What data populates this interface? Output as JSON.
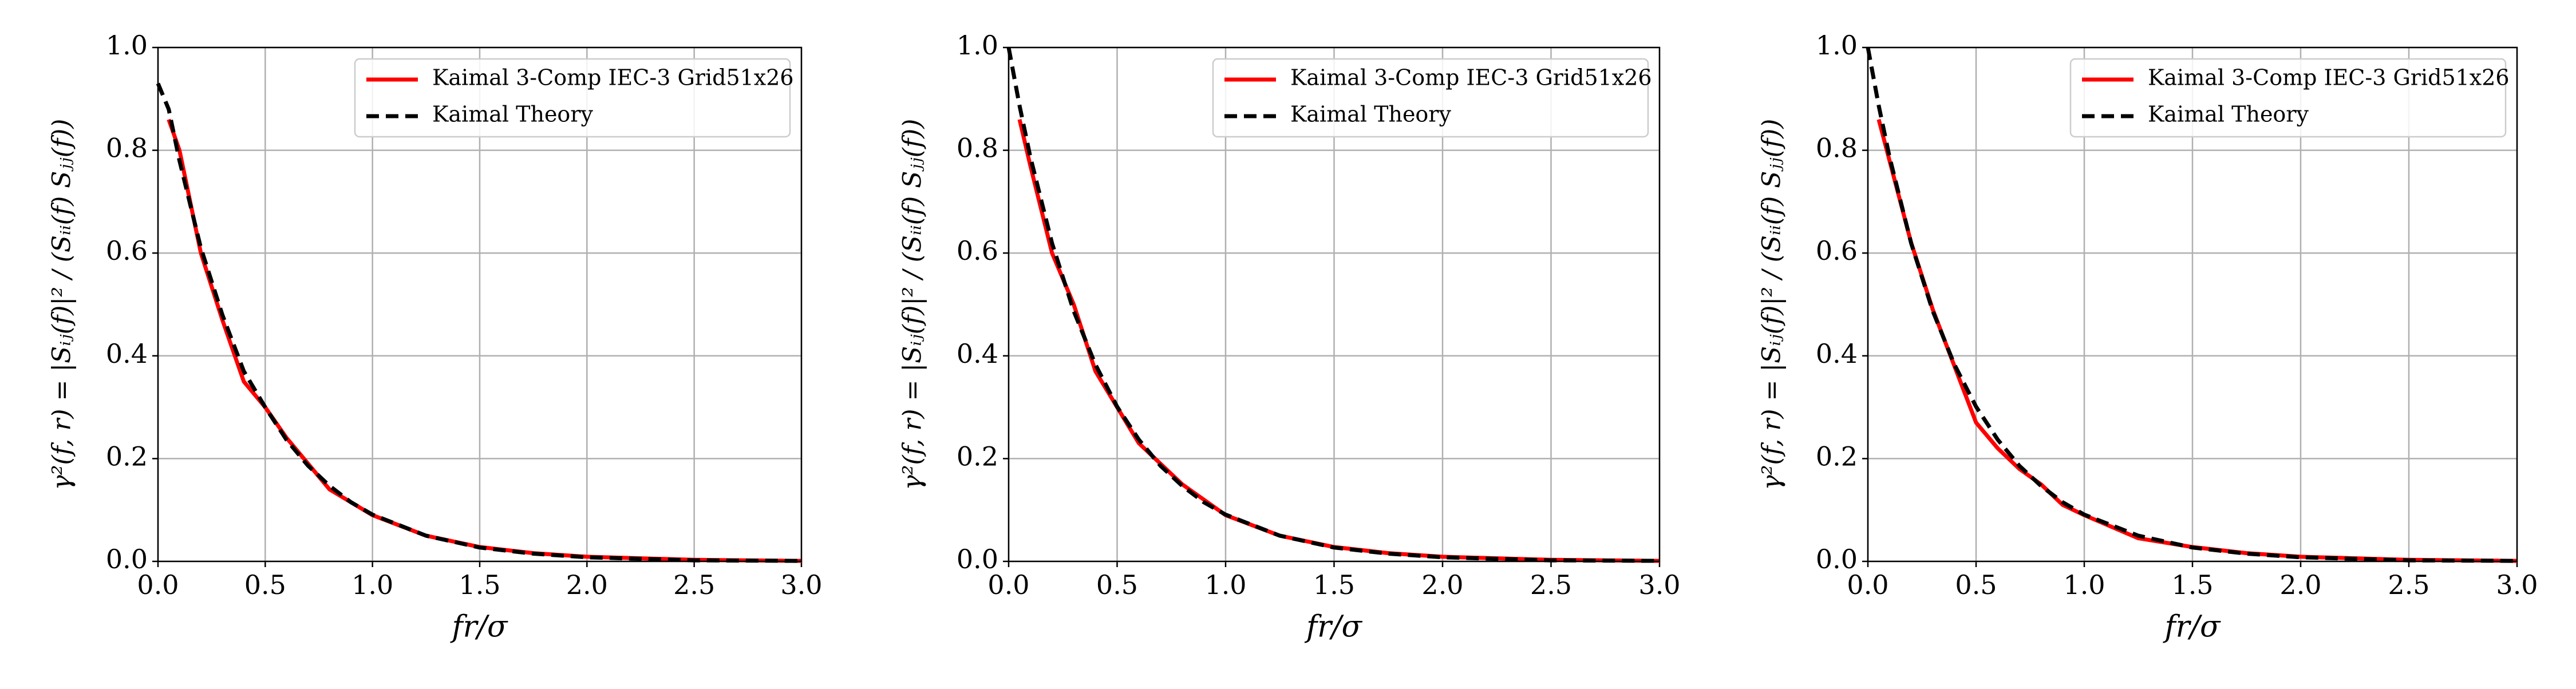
{
  "chart_data": [
    {
      "type": "line",
      "xlabel": "fr/σ",
      "ylabel": "γ²(f, r) = |Sᵢⱼ(f)|² / (Sᵢᵢ(f) Sⱼⱼ(f))",
      "xlim": [
        0,
        3
      ],
      "ylim": [
        0,
        1
      ],
      "xticks": [
        {
          "value": 0,
          "label": "0.0"
        },
        0.5,
        {
          "value": 1,
          "label": "1.0"
        },
        1.5,
        {
          "value": 2,
          "label": "2.0"
        },
        2.5,
        {
          "value": 3,
          "label": "3.0"
        }
      ],
      "yticks": [
        {
          "value": 0,
          "label": "0.0"
        },
        0.2,
        0.4,
        0.6,
        0.8,
        {
          "value": 1,
          "label": "1.0"
        }
      ],
      "grid": true,
      "legend": "upper right",
      "series": [
        {
          "name": "Kaimal 3-Comp IEC-3 Grid51x26",
          "color": "#ff0000",
          "style": "solid",
          "x": [
            0.05,
            0.1,
            0.2,
            0.3,
            0.4,
            0.5,
            0.6,
            0.7,
            0.8,
            0.9,
            1.0,
            1.25,
            1.5,
            1.75,
            2.0,
            2.5,
            3.0
          ],
          "values": [
            0.86,
            0.8,
            0.6,
            0.47,
            0.35,
            0.3,
            0.24,
            0.19,
            0.14,
            0.115,
            0.09,
            0.05,
            0.028,
            0.016,
            0.009,
            0.003,
            0.001
          ]
        },
        {
          "name": "Kaimal Theory",
          "color": "#000000",
          "style": "dashed",
          "x": [
            0,
            0.05,
            0.1,
            0.2,
            0.3,
            0.4,
            0.5,
            0.6,
            0.7,
            0.8,
            0.9,
            1.0,
            1.25,
            1.5,
            1.75,
            2.0,
            2.5,
            3.0
          ],
          "values": [
            0.93,
            0.88,
            0.78,
            0.61,
            0.48,
            0.37,
            0.3,
            0.236,
            0.186,
            0.147,
            0.115,
            0.091,
            0.05,
            0.027,
            0.015,
            0.008,
            0.002,
            0.001
          ]
        }
      ]
    },
    {
      "type": "line",
      "xlabel": "fr/σ",
      "ylabel": "γ²(f, r) = |Sᵢⱼ(f)|² / (Sᵢᵢ(f) Sⱼⱼ(f))",
      "xlim": [
        0,
        3
      ],
      "ylim": [
        0,
        1
      ],
      "xticks": [
        {
          "value": 0,
          "label": "0.0"
        },
        0.5,
        {
          "value": 1,
          "label": "1.0"
        },
        1.5,
        {
          "value": 2,
          "label": "2.0"
        },
        2.5,
        {
          "value": 3,
          "label": "3.0"
        }
      ],
      "yticks": [
        {
          "value": 0,
          "label": "0.0"
        },
        0.2,
        0.4,
        0.6,
        0.8,
        {
          "value": 1,
          "label": "1.0"
        }
      ],
      "grid": true,
      "legend": "upper right",
      "series": [
        {
          "name": "Kaimal 3-Comp IEC-3 Grid51x26",
          "color": "#ff0000",
          "style": "solid",
          "x": [
            0.05,
            0.1,
            0.2,
            0.3,
            0.4,
            0.5,
            0.6,
            0.7,
            0.8,
            0.9,
            1.0,
            1.25,
            1.5,
            1.75,
            2.0,
            2.5,
            3.0
          ],
          "values": [
            0.86,
            0.77,
            0.6,
            0.5,
            0.37,
            0.3,
            0.23,
            0.19,
            0.15,
            0.12,
            0.09,
            0.05,
            0.028,
            0.016,
            0.009,
            0.003,
            0.001
          ]
        },
        {
          "name": "Kaimal Theory",
          "color": "#000000",
          "style": "dashed",
          "x": [
            0,
            0.05,
            0.1,
            0.2,
            0.3,
            0.4,
            0.5,
            0.6,
            0.7,
            0.8,
            0.9,
            1.0,
            1.25,
            1.5,
            1.75,
            2.0,
            2.5,
            3.0
          ],
          "values": [
            1.0,
            0.887,
            0.787,
            0.619,
            0.487,
            0.383,
            0.301,
            0.237,
            0.186,
            0.147,
            0.115,
            0.091,
            0.05,
            0.027,
            0.015,
            0.008,
            0.002,
            0.001
          ]
        }
      ]
    },
    {
      "type": "line",
      "xlabel": "fr/σ",
      "ylabel": "γ²(f, r) = |Sᵢⱼ(f)|² / (Sᵢᵢ(f) Sⱼⱼ(f))",
      "xlim": [
        0,
        3
      ],
      "ylim": [
        0,
        1
      ],
      "xticks": [
        {
          "value": 0,
          "label": "0.0"
        },
        0.5,
        {
          "value": 1,
          "label": "1.0"
        },
        1.5,
        {
          "value": 2,
          "label": "2.0"
        },
        2.5,
        {
          "value": 3,
          "label": "3.0"
        }
      ],
      "yticks": [
        {
          "value": 0,
          "label": "0.0"
        },
        0.2,
        0.4,
        0.6,
        0.8,
        {
          "value": 1,
          "label": "1.0"
        }
      ],
      "grid": true,
      "legend": "upper right",
      "series": [
        {
          "name": "Kaimal 3-Comp IEC-3 Grid51x26",
          "color": "#ff0000",
          "style": "solid",
          "x": [
            0.05,
            0.1,
            0.2,
            0.3,
            0.4,
            0.5,
            0.6,
            0.7,
            0.8,
            0.9,
            1.0,
            1.25,
            1.5,
            1.75,
            2.0,
            2.5,
            3.0
          ],
          "values": [
            0.86,
            0.78,
            0.62,
            0.49,
            0.38,
            0.27,
            0.22,
            0.18,
            0.15,
            0.11,
            0.09,
            0.045,
            0.028,
            0.016,
            0.009,
            0.003,
            0.001
          ]
        },
        {
          "name": "Kaimal Theory",
          "color": "#000000",
          "style": "dashed",
          "x": [
            0,
            0.05,
            0.1,
            0.2,
            0.3,
            0.4,
            0.5,
            0.6,
            0.7,
            0.8,
            0.9,
            1.0,
            1.25,
            1.5,
            1.75,
            2.0,
            2.5,
            3.0
          ],
          "values": [
            1.0,
            0.887,
            0.787,
            0.619,
            0.487,
            0.383,
            0.301,
            0.237,
            0.186,
            0.147,
            0.115,
            0.091,
            0.05,
            0.027,
            0.015,
            0.008,
            0.002,
            0.001
          ]
        }
      ]
    }
  ]
}
